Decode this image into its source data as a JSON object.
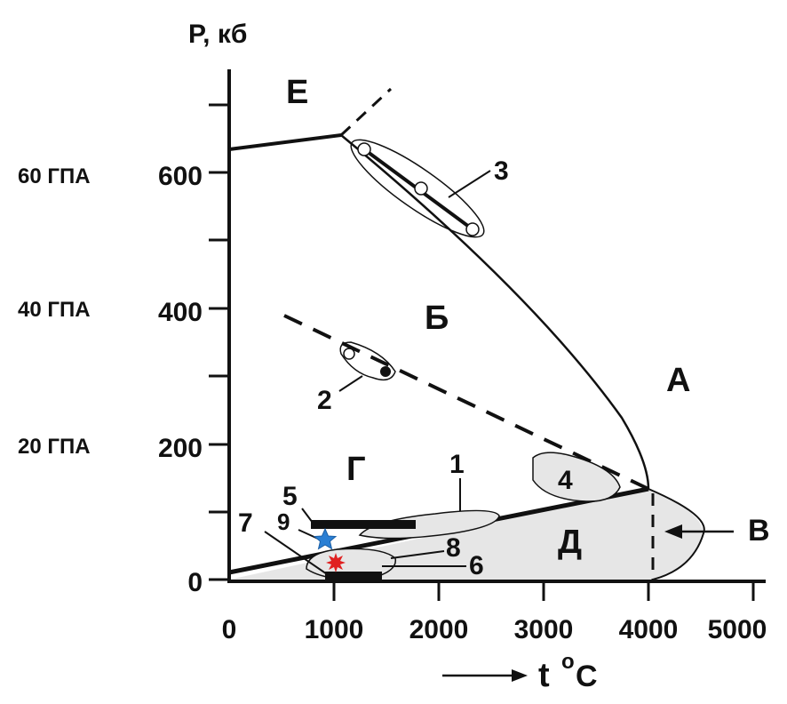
{
  "axis": {
    "y_title": "P, кб",
    "x_title": "t",
    "x_title_sup": "o",
    "x_title_unit": "C",
    "x_ticks": [
      "0",
      "1000",
      "2000",
      "3000",
      "4000",
      "5000"
    ],
    "y_ticks": [
      "0",
      "200",
      "400",
      "600"
    ],
    "gpa_labels": [
      "20 ГПА",
      "40 ГПА",
      "60 ГПА"
    ]
  },
  "regions": {
    "A": "А",
    "B": "Б",
    "V": "В",
    "G": "Г",
    "D": "Д",
    "E": "Е"
  },
  "markers": {
    "m1": "1",
    "m2": "2",
    "m3": "3",
    "m4": "4",
    "m5": "5",
    "m6": "6",
    "m7": "7",
    "m8": "8",
    "m9": "9"
  },
  "colors": {
    "ink": "#111111",
    "field_fill": "#e6e6e6",
    "star": "#2a7fd4",
    "burst": "#e02020"
  },
  "icons": {
    "star": "blue-star-icon",
    "burst": "red-burst-icon",
    "arrow": "right-arrow-icon"
  }
}
